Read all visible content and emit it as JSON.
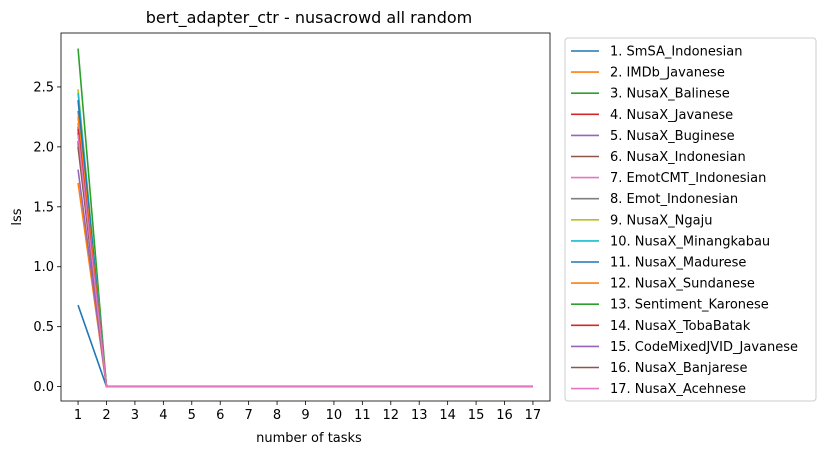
{
  "chart_data": {
    "type": "line",
    "title": "bert_adapter_ctr - nusacrowd all random",
    "xlabel": "number of tasks",
    "ylabel": "lss",
    "xlim": [
      0.4,
      17.6
    ],
    "ylim": [
      -0.12,
      2.95
    ],
    "x": [
      1,
      2,
      3,
      4,
      5,
      6,
      7,
      8,
      9,
      10,
      11,
      12,
      13,
      14,
      15,
      16,
      17
    ],
    "x_ticks": [
      "1",
      "2",
      "3",
      "4",
      "5",
      "6",
      "7",
      "8",
      "9",
      "10",
      "11",
      "12",
      "13",
      "14",
      "15",
      "16",
      "17"
    ],
    "y_ticks": [
      "0.0",
      "0.5",
      "1.0",
      "1.5",
      "2.0",
      "2.5"
    ],
    "y_tick_values": [
      0.0,
      0.5,
      1.0,
      1.5,
      2.0,
      2.5
    ],
    "legend_position": "outside-right",
    "series": [
      {
        "name": "1. SmSA_Indonesian",
        "color": "#1f77b4",
        "values": [
          0.68,
          0.0,
          0.0,
          0.0,
          0.0,
          0.0,
          0.0,
          0.0,
          0.0,
          0.0,
          0.0,
          0.0,
          0.0,
          0.0,
          0.0,
          0.0,
          0.0
        ]
      },
      {
        "name": "2. IMDb_Javanese",
        "color": "#ff7f0e",
        "values": [
          1.7,
          0.0,
          0.0,
          0.0,
          0.0,
          0.0,
          0.0,
          0.0,
          0.0,
          0.0,
          0.0,
          0.0,
          0.0,
          0.0,
          0.0,
          0.0,
          0.0
        ]
      },
      {
        "name": "3. NusaX_Balinese",
        "color": "#2ca02c",
        "values": [
          2.82,
          0.0,
          0.0,
          0.0,
          0.0,
          0.0,
          0.0,
          0.0,
          0.0,
          0.0,
          0.0,
          0.0,
          0.0,
          0.0,
          0.0,
          0.0,
          0.0
        ]
      },
      {
        "name": "4. NusaX_Javanese",
        "color": "#d62728",
        "values": [
          2.17,
          0.0,
          0.0,
          0.0,
          0.0,
          0.0,
          0.0,
          0.0,
          0.0,
          0.0,
          0.0,
          0.0,
          0.0,
          0.0,
          0.0,
          0.0,
          0.0
        ]
      },
      {
        "name": "5. NusaX_Buginese",
        "color": "#9467bd",
        "values": [
          2.03,
          0.0,
          0.0,
          0.0,
          0.0,
          0.0,
          0.0,
          0.0,
          0.0,
          0.0,
          0.0,
          0.0,
          0.0,
          0.0,
          0.0,
          0.0,
          0.0
        ]
      },
      {
        "name": "6. NusaX_Indonesian",
        "color": "#8c564b",
        "values": [
          2.0,
          0.0,
          0.0,
          0.0,
          0.0,
          0.0,
          0.0,
          0.0,
          0.0,
          0.0,
          0.0,
          0.0,
          0.0,
          0.0,
          0.0,
          0.0,
          0.0
        ]
      },
      {
        "name": "7. EmotCMT_Indonesian",
        "color": "#e377c2",
        "values": [
          2.2,
          0.0,
          0.0,
          0.0,
          0.0,
          0.0,
          0.0,
          0.0,
          0.0,
          0.0,
          0.0,
          0.0,
          0.0,
          0.0,
          0.0,
          0.0,
          0.0
        ]
      },
      {
        "name": "8. Emot_Indonesian",
        "color": "#7f7f7f",
        "values": [
          2.3,
          0.0,
          0.0,
          0.0,
          0.0,
          0.0,
          0.0,
          0.0,
          0.0,
          0.0,
          0.0,
          0.0,
          0.0,
          0.0,
          0.0,
          0.0,
          0.0
        ]
      },
      {
        "name": "9. NusaX_Ngaju",
        "color": "#bcbd22",
        "values": [
          2.48,
          0.0,
          0.0,
          0.0,
          0.0,
          0.0,
          0.0,
          0.0,
          0.0,
          0.0,
          0.0,
          0.0,
          0.0,
          0.0,
          0.0,
          0.0,
          0.0
        ]
      },
      {
        "name": "10. NusaX_Minangkabau",
        "color": "#17becf",
        "values": [
          2.45,
          0.0,
          0.0,
          0.0,
          0.0,
          0.0,
          0.0,
          0.0,
          0.0,
          0.0,
          0.0,
          0.0,
          0.0,
          0.0,
          0.0,
          0.0,
          0.0
        ]
      },
      {
        "name": "11. NusaX_Madurese",
        "color": "#1f77b4",
        "values": [
          2.39,
          0.0,
          0.0,
          0.0,
          0.0,
          0.0,
          0.0,
          0.0,
          0.0,
          0.0,
          0.0,
          0.0,
          0.0,
          0.0,
          0.0,
          0.0,
          0.0
        ]
      },
      {
        "name": "12. NusaX_Sundanese",
        "color": "#ff7f0e",
        "values": [
          2.25,
          0.0,
          0.0,
          0.0,
          0.0,
          0.0,
          0.0,
          0.0,
          0.0,
          0.0,
          0.0,
          0.0,
          0.0,
          0.0,
          0.0,
          0.0,
          0.0
        ]
      },
      {
        "name": "13. Sentiment_Karonese",
        "color": "#2ca02c",
        "values": [
          2.12,
          0.0,
          0.0,
          0.0,
          0.0,
          0.0,
          0.0,
          0.0,
          0.0,
          0.0,
          0.0,
          0.0,
          0.0,
          0.0,
          0.0,
          0.0,
          0.0
        ]
      },
      {
        "name": "14. NusaX_TobaBatak",
        "color": "#d62728",
        "values": [
          2.15,
          0.0,
          0.0,
          0.0,
          0.0,
          0.0,
          0.0,
          0.0,
          0.0,
          0.0,
          0.0,
          0.0,
          0.0,
          0.0,
          0.0,
          0.0,
          0.0
        ]
      },
      {
        "name": "15. CodeMixedJVID_Javanese",
        "color": "#9467bd",
        "values": [
          1.81,
          0.0,
          0.0,
          0.0,
          0.0,
          0.0,
          0.0,
          0.0,
          0.0,
          0.0,
          0.0,
          0.0,
          0.0,
          0.0,
          0.0,
          0.0,
          0.0
        ]
      },
      {
        "name": "16. NusaX_Banjarese",
        "color": "#8c564b",
        "values": [
          2.05,
          0.0,
          0.0,
          0.0,
          0.0,
          0.0,
          0.0,
          0.0,
          0.0,
          0.0,
          0.0,
          0.0,
          0.0,
          0.0,
          0.0,
          0.0,
          0.0
        ]
      },
      {
        "name": "17. NusaX_Acehnese",
        "color": "#e377c2",
        "values": [
          2.1,
          0.0,
          0.0,
          0.0,
          0.0,
          0.0,
          0.0,
          0.0,
          0.0,
          0.0,
          0.0,
          0.0,
          0.0,
          0.0,
          0.0,
          0.0,
          0.0
        ]
      }
    ]
  }
}
